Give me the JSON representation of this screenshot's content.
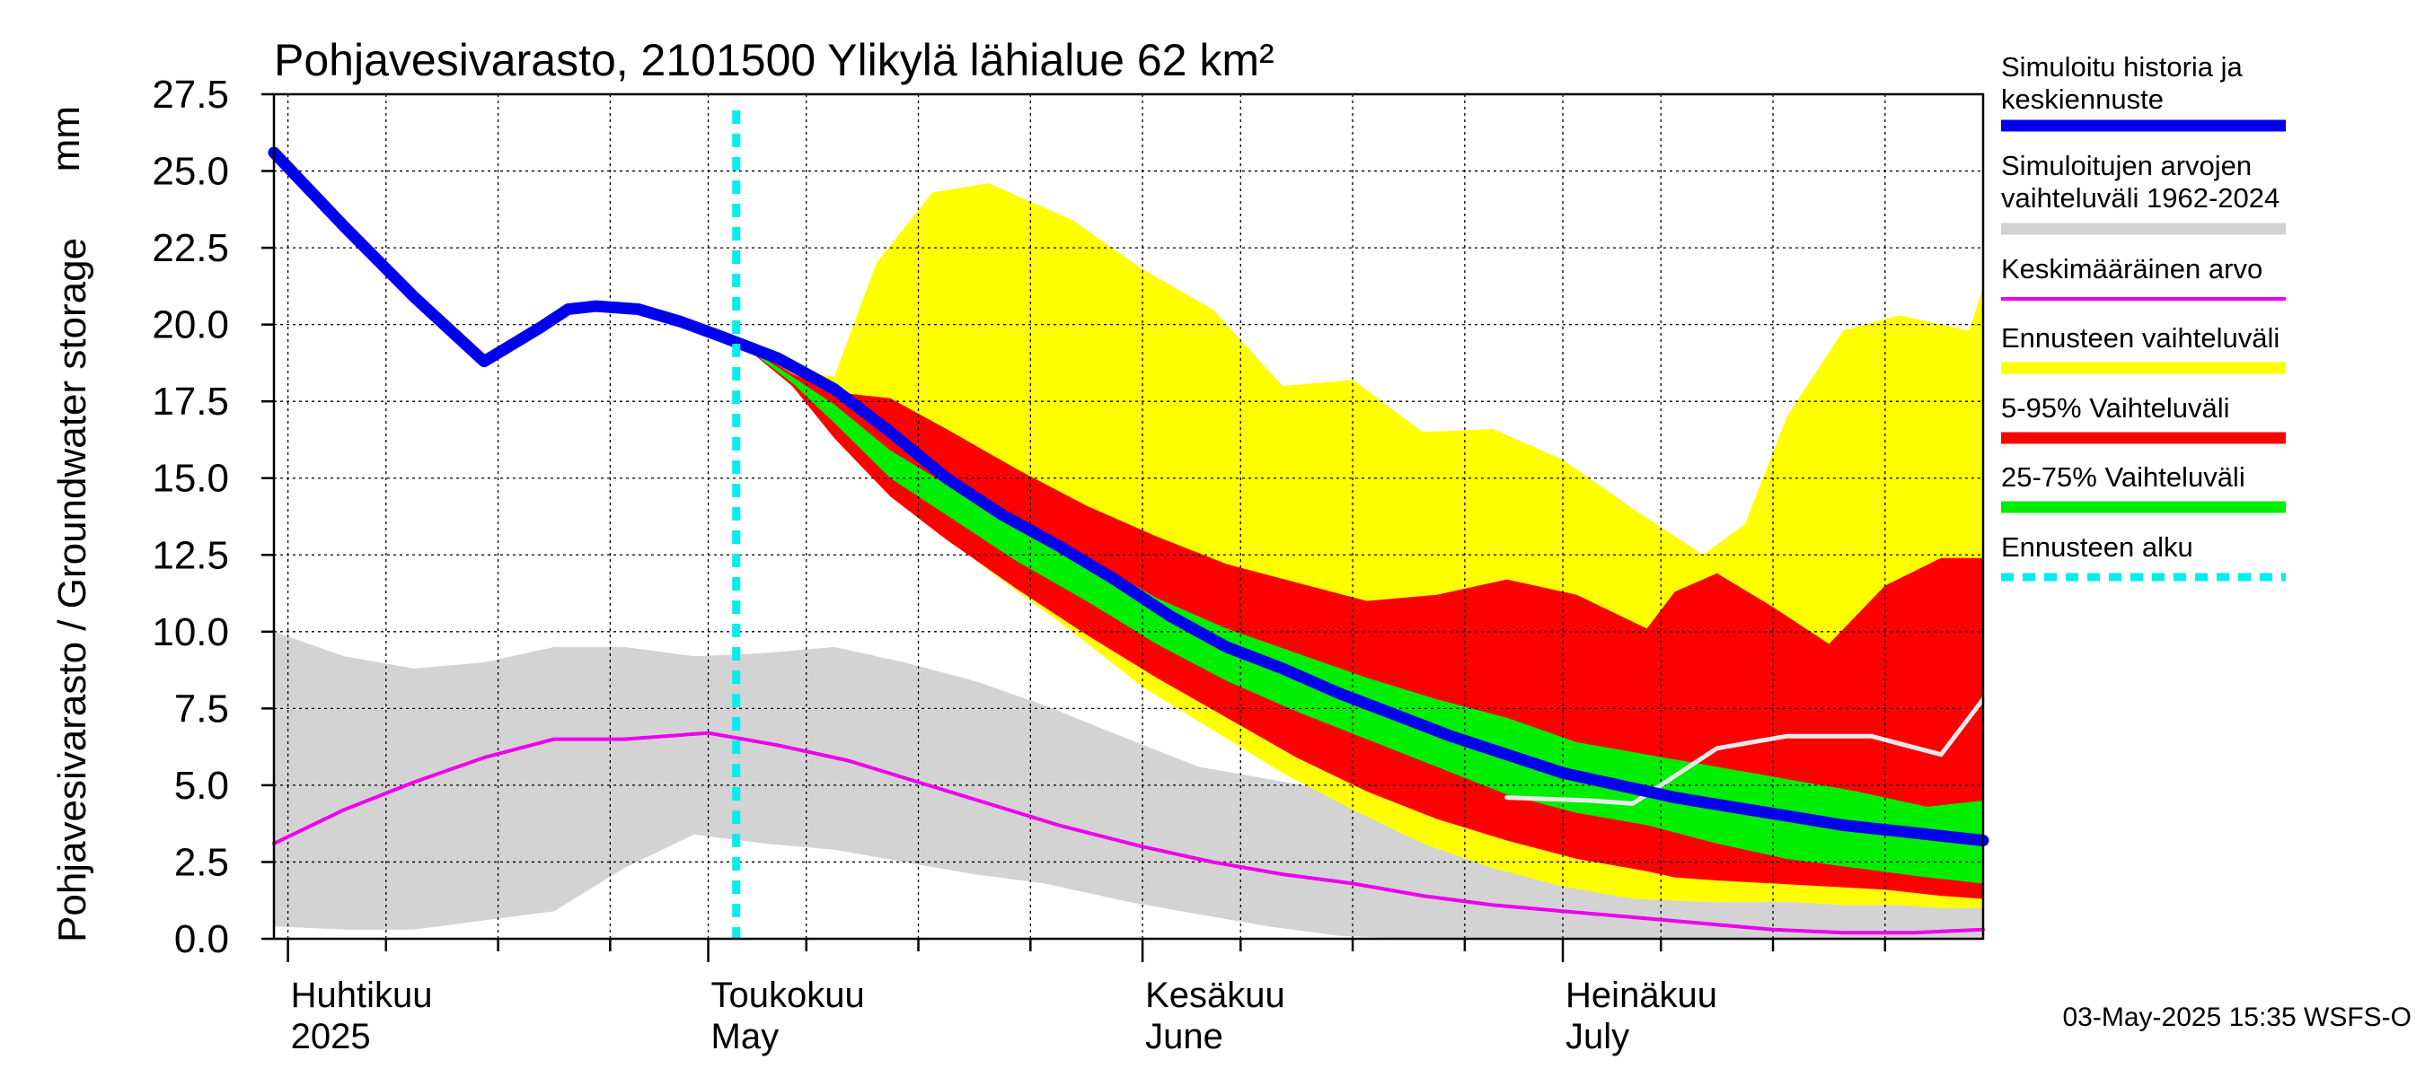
{
  "chart_data": {
    "type": "area",
    "title": "Pohjavesivarasto, 2101500 Ylikylä lähialue 62 km²",
    "ylabel": "Pohjavesivarasto / Groundwater storage",
    "yunit": "mm",
    "ylim": [
      0,
      27.5
    ],
    "yticks": [
      "0.0",
      "2.5",
      "5.0",
      "7.5",
      "10.0",
      "12.5",
      "15.0",
      "17.5",
      "20.0",
      "22.5",
      "25.0",
      "27.5"
    ],
    "xlim": [
      "2025-03-31",
      "2025-07-31"
    ],
    "grid": true,
    "legend_position": "right",
    "month_labels": [
      {
        "date": "2025-04-01",
        "fi": "Huhtikuu",
        "en": "2025"
      },
      {
        "date": "2025-05-01",
        "fi": "Toukokuu",
        "en": "May"
      },
      {
        "date": "2025-06-01",
        "fi": "Kesäkuu",
        "en": "June"
      },
      {
        "date": "2025-07-01",
        "fi": "Heinäkuu",
        "en": "July"
      }
    ],
    "forecast_start": "2025-05-03",
    "colors": {
      "history": "#0000ee",
      "hist_range": "#d3d3d3",
      "mean": "#ee00ee",
      "ens_range": "#ffff00",
      "p5_95": "#ff0000",
      "p25_75": "#00ee00",
      "forecast_start": "#00eeee",
      "last_year": "#e8e8e8"
    },
    "series": [
      {
        "key": "hist_range",
        "name": "Simuloitujen arvojen vaihteluväli 1962-2024",
        "x": [
          "2025-03-31",
          "2025-04-05",
          "2025-04-10",
          "2025-04-15",
          "2025-04-20",
          "2025-04-25",
          "2025-04-30",
          "2025-05-05",
          "2025-05-10",
          "2025-05-15",
          "2025-05-20",
          "2025-05-25",
          "2025-05-31",
          "2025-06-05",
          "2025-06-10",
          "2025-06-15",
          "2025-06-20",
          "2025-06-25",
          "2025-06-30",
          "2025-07-05",
          "2025-07-10",
          "2025-07-15",
          "2025-07-20",
          "2025-07-25",
          "2025-07-31"
        ],
        "upper": [
          10.0,
          9.2,
          8.8,
          9.0,
          9.5,
          9.5,
          9.2,
          9.3,
          9.5,
          9.0,
          8.4,
          7.6,
          6.5,
          5.6,
          5.2,
          4.8,
          4.4,
          4.6,
          4.6,
          4.0,
          3.6,
          3.3,
          3.1,
          2.9,
          2.7
        ],
        "lower": [
          0.4,
          0.3,
          0.3,
          0.6,
          0.9,
          2.3,
          3.4,
          3.1,
          2.9,
          2.5,
          2.1,
          1.8,
          1.2,
          0.8,
          0.4,
          0.1,
          0.0,
          0.0,
          0.0,
          0.0,
          0.0,
          0.0,
          0.0,
          0.0,
          0.0
        ]
      },
      {
        "key": "ens_range",
        "name": "Ennusteen vaihteluväli",
        "x": [
          "2025-05-03",
          "2025-05-07",
          "2025-05-10",
          "2025-05-13",
          "2025-05-17",
          "2025-05-21",
          "2025-05-27",
          "2025-06-01",
          "2025-06-06",
          "2025-06-11",
          "2025-06-16",
          "2025-06-21",
          "2025-06-26",
          "2025-07-01",
          "2025-07-06",
          "2025-07-11",
          "2025-07-14",
          "2025-07-17",
          "2025-07-21",
          "2025-07-25",
          "2025-07-28",
          "2025-07-30",
          "2025-07-31"
        ],
        "upper": [
          19.5,
          18.5,
          18.3,
          22.0,
          24.3,
          24.6,
          23.4,
          21.8,
          20.5,
          18.0,
          18.2,
          16.5,
          16.6,
          15.6,
          14.0,
          12.5,
          13.5,
          17.0,
          19.8,
          20.3,
          20.0,
          19.8,
          21.2
        ],
        "lower": [
          19.5,
          18.2,
          17.0,
          15.1,
          13.5,
          12.0,
          10.0,
          8.2,
          6.8,
          5.4,
          4.2,
          3.1,
          2.3,
          1.7,
          1.3,
          1.2,
          1.2,
          1.2,
          1.1,
          1.1,
          1.0,
          1.0,
          1.0
        ]
      },
      {
        "key": "p5_95",
        "name": "5-95% Vaihteluväli",
        "x": [
          "2025-05-03",
          "2025-05-07",
          "2025-05-10",
          "2025-05-14",
          "2025-05-18",
          "2025-05-23",
          "2025-05-28",
          "2025-06-02",
          "2025-06-07",
          "2025-06-12",
          "2025-06-17",
          "2025-06-22",
          "2025-06-27",
          "2025-07-02",
          "2025-07-07",
          "2025-07-09",
          "2025-07-12",
          "2025-07-16",
          "2025-07-20",
          "2025-07-24",
          "2025-07-28",
          "2025-07-31"
        ],
        "upper": [
          19.5,
          18.4,
          17.8,
          17.6,
          16.6,
          15.3,
          14.1,
          13.1,
          12.2,
          11.6,
          11.0,
          11.2,
          11.7,
          11.2,
          10.1,
          11.3,
          11.9,
          10.8,
          9.6,
          11.5,
          12.4,
          12.4
        ],
        "lower": [
          19.5,
          18.0,
          16.3,
          14.4,
          13.0,
          11.4,
          9.9,
          8.5,
          7.2,
          5.9,
          4.8,
          3.9,
          3.2,
          2.6,
          2.2,
          2.0,
          1.9,
          1.8,
          1.7,
          1.6,
          1.4,
          1.3
        ]
      },
      {
        "key": "p25_75",
        "name": "25-75% Vaihteluväli",
        "x": [
          "2025-05-03",
          "2025-05-07",
          "2025-05-10",
          "2025-05-14",
          "2025-05-18",
          "2025-05-23",
          "2025-05-28",
          "2025-06-02",
          "2025-06-07",
          "2025-06-12",
          "2025-06-17",
          "2025-06-22",
          "2025-06-27",
          "2025-07-02",
          "2025-07-07",
          "2025-07-12",
          "2025-07-17",
          "2025-07-22",
          "2025-07-27",
          "2025-07-31"
        ],
        "upper": [
          19.5,
          18.3,
          17.4,
          15.9,
          14.8,
          13.7,
          12.4,
          11.1,
          10.1,
          9.3,
          8.5,
          7.8,
          7.2,
          6.4,
          6.0,
          5.6,
          5.2,
          4.8,
          4.3,
          4.5
        ],
        "lower": [
          19.5,
          18.1,
          16.8,
          15.0,
          13.8,
          12.3,
          11.0,
          9.6,
          8.4,
          7.4,
          6.5,
          5.6,
          4.7,
          4.1,
          3.7,
          3.1,
          2.6,
          2.3,
          2.0,
          1.8
        ]
      },
      {
        "key": "history",
        "name": "Simuloitu historia ja keskiennuste",
        "x": [
          "2025-03-31",
          "2025-04-05",
          "2025-04-10",
          "2025-04-15",
          "2025-04-19",
          "2025-04-21",
          "2025-04-23",
          "2025-04-26",
          "2025-04-29",
          "2025-05-02",
          "2025-05-06",
          "2025-05-10",
          "2025-05-14",
          "2025-05-18",
          "2025-05-22",
          "2025-05-26",
          "2025-05-30",
          "2025-06-03",
          "2025-06-07",
          "2025-06-11",
          "2025-06-15",
          "2025-06-19",
          "2025-06-23",
          "2025-06-27",
          "2025-07-01",
          "2025-07-05",
          "2025-07-09",
          "2025-07-13",
          "2025-07-17",
          "2025-07-21",
          "2025-07-25",
          "2025-07-31"
        ],
        "values": [
          25.6,
          23.2,
          20.9,
          18.8,
          19.9,
          20.5,
          20.6,
          20.5,
          20.1,
          19.6,
          18.9,
          17.9,
          16.5,
          15.0,
          13.8,
          12.8,
          11.7,
          10.5,
          9.5,
          8.8,
          8.0,
          7.3,
          6.6,
          6.0,
          5.4,
          5.0,
          4.6,
          4.3,
          4.0,
          3.7,
          3.5,
          3.2
        ]
      },
      {
        "key": "mean",
        "name": "Keskimääräinen arvo",
        "x": [
          "2025-03-31",
          "2025-04-05",
          "2025-04-10",
          "2025-04-15",
          "2025-04-20",
          "2025-04-25",
          "2025-05-01",
          "2025-05-06",
          "2025-05-11",
          "2025-05-16",
          "2025-05-21",
          "2025-05-26",
          "2025-06-01",
          "2025-06-06",
          "2025-06-11",
          "2025-06-16",
          "2025-06-21",
          "2025-06-26",
          "2025-07-01",
          "2025-07-06",
          "2025-07-11",
          "2025-07-16",
          "2025-07-21",
          "2025-07-26",
          "2025-07-31"
        ],
        "values": [
          3.1,
          4.2,
          5.1,
          5.9,
          6.5,
          6.5,
          6.7,
          6.3,
          5.8,
          5.1,
          4.4,
          3.7,
          3.0,
          2.5,
          2.1,
          1.8,
          1.4,
          1.1,
          0.9,
          0.7,
          0.5,
          0.3,
          0.2,
          0.2,
          0.3
        ]
      },
      {
        "key": "last_year",
        "x": [
          "2025-06-27",
          "2025-07-03",
          "2025-07-06",
          "2025-07-12",
          "2025-07-17",
          "2025-07-23",
          "2025-07-28",
          "2025-07-31"
        ],
        "values": [
          4.6,
          4.5,
          4.4,
          6.2,
          6.6,
          6.6,
          6.0,
          7.8
        ]
      }
    ],
    "legend": [
      {
        "label": "Simuloitu historia ja keskiennuste",
        "color": "#0000ee",
        "style": "thick"
      },
      {
        "label": "Simuloitujen arvojen vaihteluväli 1962-2024",
        "color": "#d3d3d3",
        "style": "thick"
      },
      {
        "label": "Keskimääräinen arvo",
        "color": "#ee00ee",
        "style": "thin"
      },
      {
        "label": "Ennusteen vaihteluväli",
        "color": "#ffff00",
        "style": "thick"
      },
      {
        "label": "5-95% Vaihteluväli",
        "color": "#ff0000",
        "style": "thick"
      },
      {
        "label": "25-75% Vaihteluväli",
        "color": "#00ee00",
        "style": "thick"
      },
      {
        "label": "Ennusteen alku",
        "color": "#00eeee",
        "style": "dashed"
      }
    ],
    "footer": "03-May-2025 15:35 WSFS-O"
  }
}
